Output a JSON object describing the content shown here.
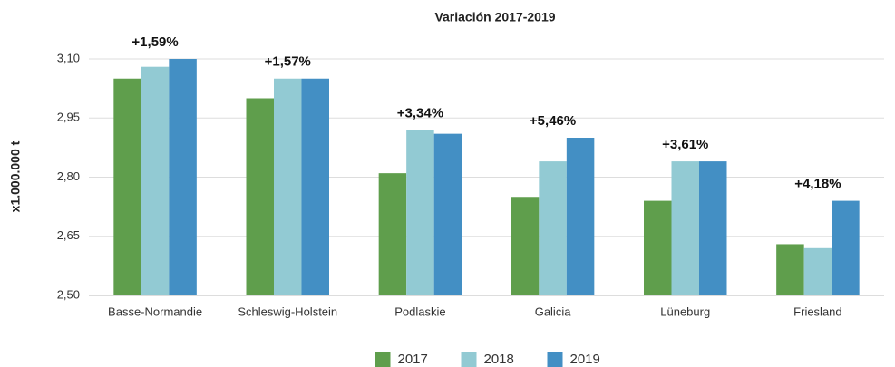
{
  "chart_data": {
    "type": "bar",
    "title": "Variación 2017-2019",
    "y_label": "x1.000.000 t",
    "categories": [
      "Basse-Normandie",
      "Schleswig-Holstein",
      "Podlaskie",
      "Galicia",
      "Lüneburg",
      "Friesland"
    ],
    "series": [
      {
        "name": "2017",
        "color": "#5f9e4c",
        "values": [
          3.05,
          3.0,
          2.81,
          2.75,
          2.74,
          2.63
        ]
      },
      {
        "name": "2018",
        "color": "#92cad3",
        "values": [
          3.08,
          3.05,
          2.92,
          2.84,
          2.84,
          2.62
        ]
      },
      {
        "name": "2019",
        "color": "#438fc4",
        "values": [
          3.1,
          3.05,
          2.91,
          2.9,
          2.84,
          2.74
        ]
      }
    ],
    "annotations": [
      "+1,59%",
      "+1,57%",
      "+3,34%",
      "+5,46%",
      "+3,61%",
      "+4,18%"
    ],
    "ylim": [
      2.5,
      3.1
    ],
    "yticks": [
      {
        "value": 2.5,
        "label": "2,50"
      },
      {
        "value": 2.65,
        "label": "2,65"
      },
      {
        "value": 2.8,
        "label": "2,80"
      },
      {
        "value": 2.95,
        "label": "2,95"
      },
      {
        "value": 3.1,
        "label": "3,10"
      }
    ],
    "grid": true,
    "legend": "bottom"
  }
}
